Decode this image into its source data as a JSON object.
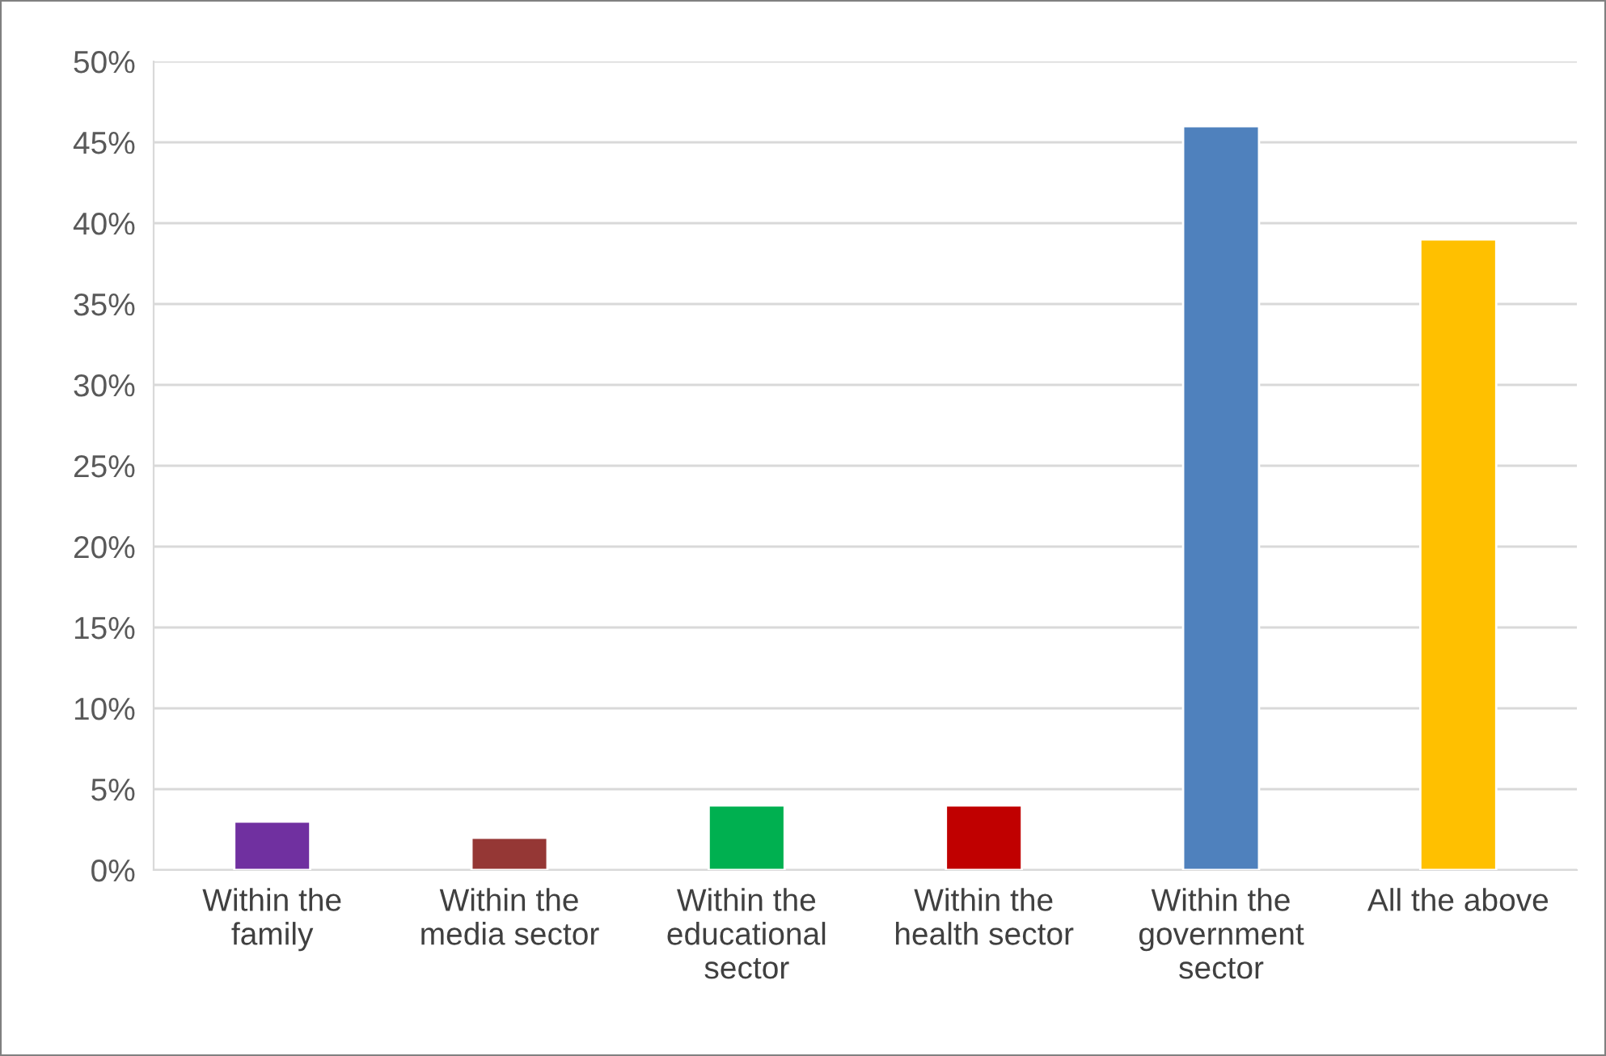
{
  "chart_data": {
    "type": "bar",
    "categories": [
      "Within the\nfamily",
      "Within the\nmedia sector",
      "Within the\neducational\nsector",
      "Within the\nhealth sector",
      "Within the\ngovernment\nsector",
      "All the above"
    ],
    "values": [
      3,
      2,
      4,
      4,
      46,
      39
    ],
    "colors": [
      "#7030a0",
      "#953735",
      "#00b050",
      "#c00000",
      "#4f81bd",
      "#ffc000"
    ],
    "ylim": [
      0,
      50
    ],
    "yticks": [
      {
        "value": 0,
        "label": "0%"
      },
      {
        "value": 5,
        "label": "5%"
      },
      {
        "value": 10,
        "label": "10%"
      },
      {
        "value": 15,
        "label": "15%"
      },
      {
        "value": 20,
        "label": "20%"
      },
      {
        "value": 25,
        "label": "25%"
      },
      {
        "value": 30,
        "label": "30%"
      },
      {
        "value": 35,
        "label": "35%"
      },
      {
        "value": 40,
        "label": "40%"
      },
      {
        "value": 45,
        "label": "45%"
      },
      {
        "value": 50,
        "label": "50%"
      }
    ],
    "grid": "y"
  }
}
